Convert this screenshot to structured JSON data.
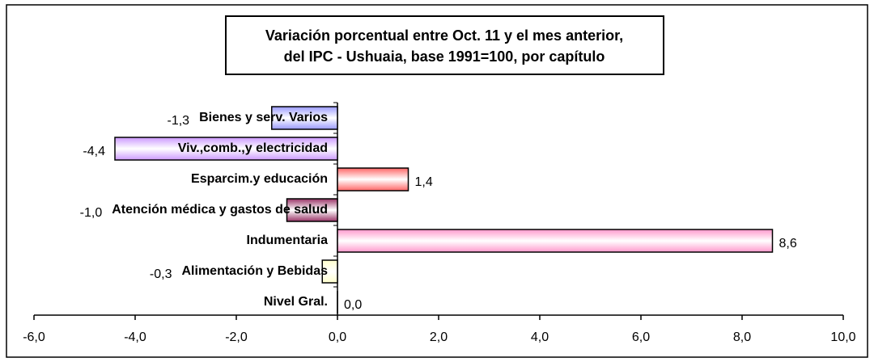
{
  "chart_data": {
    "type": "hbar",
    "title": [
      "Variación porcentual entre Oct. 11 y el mes anterior,",
      "del IPC - Ushuaia, base 1991=100, por capítulo"
    ],
    "categories": [
      "Bienes y serv. Varios",
      "Viv.,comb.,y electricidad",
      "Esparcim.y educación",
      "Atención médica y gastos de salud",
      "Indumentaria",
      "Alimentación y Bebidas",
      "Nivel Gral."
    ],
    "values": [
      -1.3,
      -4.4,
      1.4,
      -1.0,
      8.6,
      -0.3,
      0.0
    ],
    "value_labels": [
      "-1,3",
      "-4,4",
      "1,4",
      "-1,0",
      "8,6",
      "-0,3",
      "0,0"
    ],
    "colors": [
      "#9999ff",
      "#cc99ff",
      "#ff6666",
      "#993366",
      "#ff99cc",
      "#ffffcc",
      "#cccccc"
    ],
    "xlim": [
      -6,
      10
    ],
    "xticks": [
      {
        "value": -6,
        "label": "-6,0"
      },
      {
        "value": -4,
        "label": "-4,0"
      },
      {
        "value": -2,
        "label": "-2,0"
      },
      {
        "value": 0,
        "label": "0,0"
      },
      {
        "value": 2,
        "label": "2,0"
      },
      {
        "value": 4,
        "label": "4,0"
      },
      {
        "value": 6,
        "label": "6,0"
      },
      {
        "value": 8,
        "label": "8,0"
      },
      {
        "value": 10,
        "label": "10,0"
      }
    ]
  }
}
